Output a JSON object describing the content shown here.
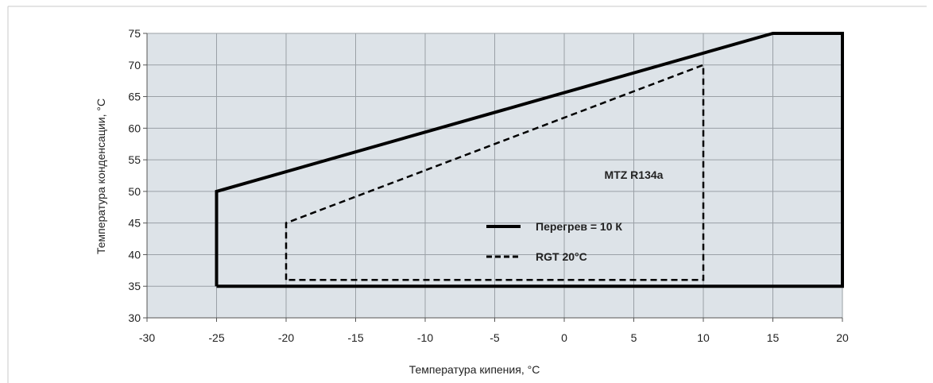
{
  "chart_data": {
    "type": "line",
    "xlabel": "Температура кипения, °C",
    "ylabel": "Температура конденсации, °C",
    "xlim": [
      -30,
      20
    ],
    "ylim": [
      30,
      75
    ],
    "x_ticks": [
      "-30",
      "-25",
      "-20",
      "-15",
      "-10",
      "-5",
      "0",
      "5",
      "10",
      "15",
      "20"
    ],
    "y_ticks": [
      "30",
      "35",
      "40",
      "45",
      "50",
      "55",
      "60",
      "65",
      "70",
      "75"
    ],
    "grid": true,
    "plot_background": "#dde3e8",
    "grid_color": "#9aa0a6",
    "series": [
      {
        "name": "Перегрев = 10 К",
        "style": "solid",
        "color": "#000000",
        "points": [
          [
            -25,
            35
          ],
          [
            -25,
            50
          ],
          [
            15,
            75
          ],
          [
            20,
            75
          ],
          [
            20,
            35
          ],
          [
            -25,
            35
          ]
        ]
      },
      {
        "name": "RGT 20°C",
        "style": "dashed",
        "color": "#000000",
        "points": [
          [
            -20,
            36
          ],
          [
            -20,
            45
          ],
          [
            10,
            70
          ],
          [
            10,
            36
          ],
          [
            -20,
            36
          ]
        ]
      }
    ],
    "annotations": [
      {
        "text": "MTZ R134a",
        "x": 5,
        "y": 52
      }
    ],
    "legend": {
      "placement": "inside-center-right",
      "entries": [
        {
          "label": "Перегрев = 10 К",
          "style": "solid"
        },
        {
          "label": "RGT 20°C",
          "style": "dashed"
        }
      ]
    }
  }
}
